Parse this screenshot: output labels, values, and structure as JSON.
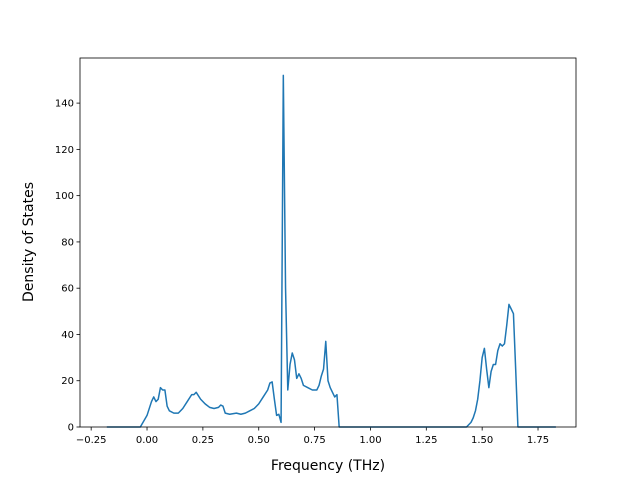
{
  "chart_data": {
    "type": "line",
    "xlabel": "Frequency (THz)",
    "ylabel": "Density of States",
    "color": "#1f77b4",
    "xlim": [
      -0.3,
      1.92
    ],
    "ylim": [
      0,
      159.5
    ],
    "xticks": [
      {
        "value": -0.25,
        "label": "−0.25"
      },
      {
        "value": 0,
        "label": "0.00"
      },
      {
        "value": 0.25,
        "label": "0.25"
      },
      {
        "value": 0.5,
        "label": "0.50"
      },
      {
        "value": 0.75,
        "label": "0.75"
      },
      {
        "value": 1,
        "label": "1.00"
      },
      {
        "value": 1.25,
        "label": "1.25"
      },
      {
        "value": 1.5,
        "label": "1.50"
      },
      {
        "value": 1.75,
        "label": "1.75"
      }
    ],
    "yticks": [
      0,
      20,
      40,
      60,
      80,
      100,
      120,
      140
    ],
    "x": [
      -0.18,
      -0.03,
      0.0,
      0.02,
      0.03,
      0.04,
      0.05,
      0.06,
      0.07,
      0.08,
      0.09,
      0.1,
      0.12,
      0.14,
      0.16,
      0.18,
      0.2,
      0.21,
      0.22,
      0.24,
      0.26,
      0.28,
      0.3,
      0.32,
      0.33,
      0.34,
      0.35,
      0.37,
      0.4,
      0.42,
      0.44,
      0.46,
      0.48,
      0.5,
      0.52,
      0.54,
      0.55,
      0.56,
      0.57,
      0.58,
      0.59,
      0.6,
      0.61,
      0.62,
      0.63,
      0.64,
      0.65,
      0.66,
      0.67,
      0.68,
      0.69,
      0.7,
      0.72,
      0.74,
      0.76,
      0.77,
      0.78,
      0.79,
      0.8,
      0.81,
      0.82,
      0.84,
      0.85,
      0.86,
      1.43,
      1.45,
      1.46,
      1.47,
      1.48,
      1.49,
      1.5,
      1.51,
      1.52,
      1.53,
      1.54,
      1.55,
      1.56,
      1.57,
      1.58,
      1.59,
      1.6,
      1.61,
      1.62,
      1.63,
      1.64,
      1.65,
      1.66,
      1.83
    ],
    "values": [
      0,
      0,
      5,
      11,
      13,
      11,
      12,
      17,
      16,
      16,
      9,
      7,
      6,
      6,
      8,
      11,
      14,
      14,
      15,
      12,
      10,
      8.5,
      8,
      8.5,
      9.5,
      9,
      6,
      5.5,
      6,
      5.5,
      6,
      7,
      8,
      10,
      13,
      16,
      19,
      19.5,
      12,
      5,
      5.5,
      2,
      152,
      60,
      16,
      27,
      32,
      29,
      21,
      23,
      21,
      18,
      17,
      16,
      16,
      18,
      22,
      25,
      37,
      20,
      17,
      13,
      14,
      0,
      0,
      2,
      4,
      7,
      12,
      20,
      30,
      34,
      25,
      17,
      24,
      27,
      27,
      33,
      36,
      35,
      36,
      44,
      53,
      51,
      49,
      25,
      0,
      0
    ]
  }
}
